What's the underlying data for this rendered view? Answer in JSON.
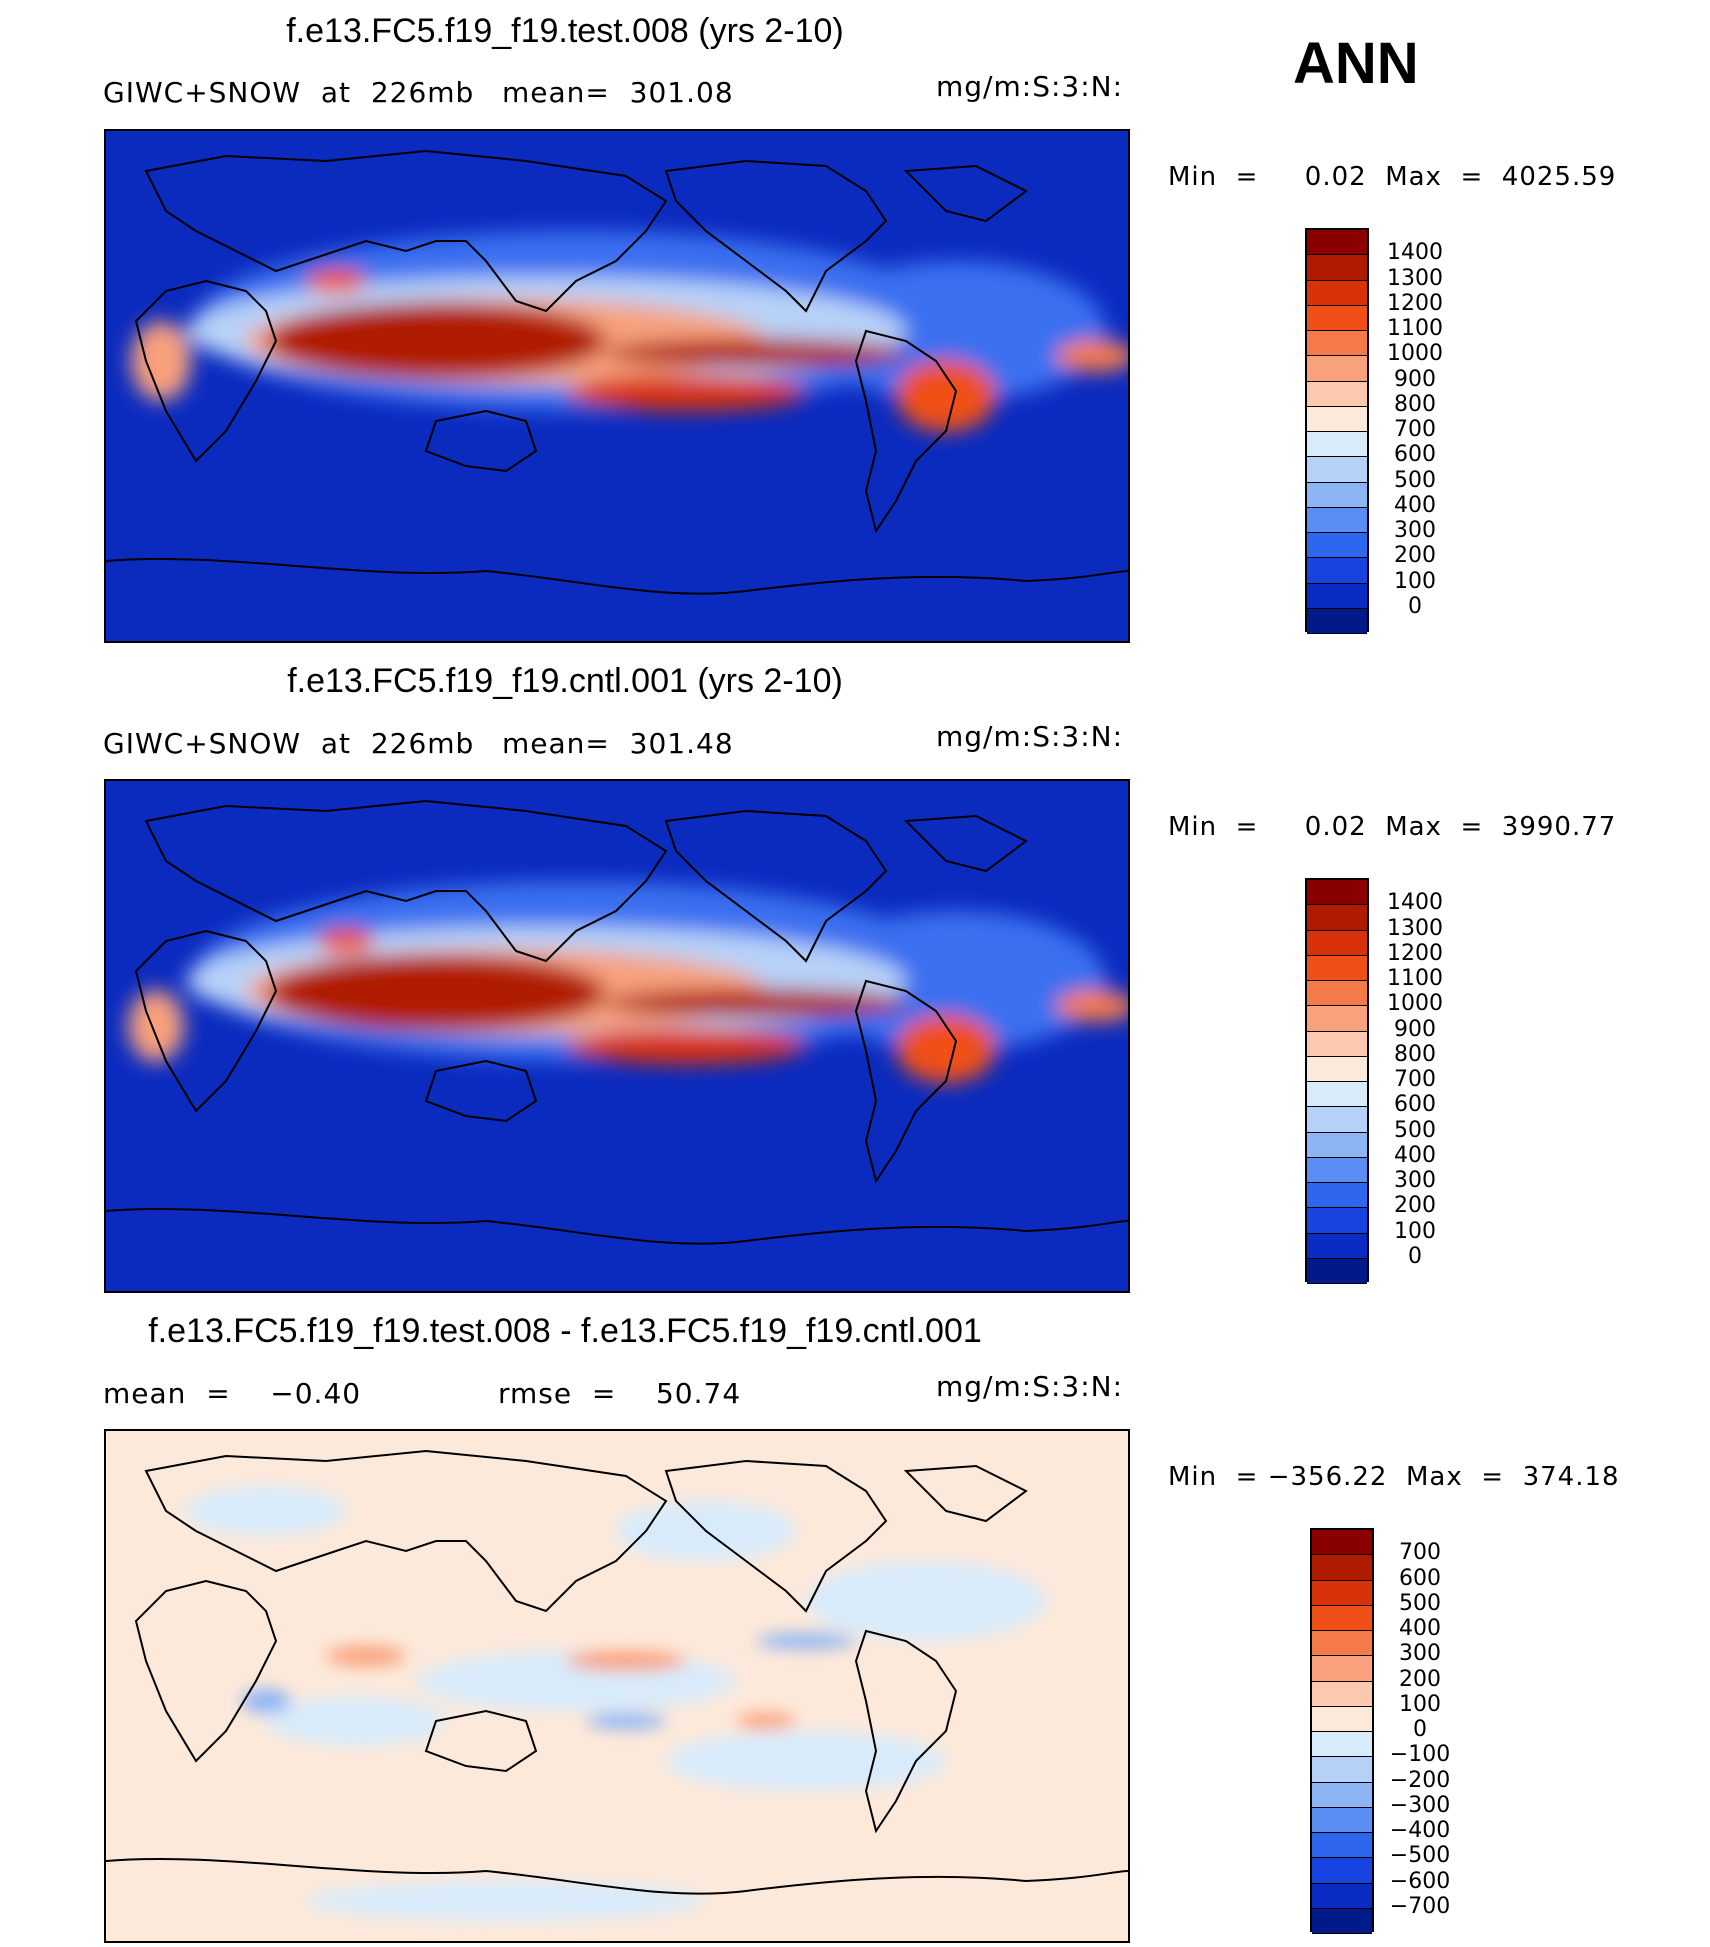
{
  "season": "ANN",
  "panels": [
    {
      "title": "f.e13.FC5.f19_f19.test.008 (yrs 2-10)",
      "left_label": "GIWC+SNOW  at  226mb",
      "stat_label": "mean=  301.08",
      "units": "mg/m:S:3:N:",
      "minmax": "Min  =     0.02  Max  =  4025.59",
      "colorbar": {
        "labels": [
          "1400",
          "1300",
          "1200",
          "1100",
          "1000",
          "900",
          "800",
          "700",
          "600",
          "500",
          "400",
          "300",
          "200",
          "100",
          "0"
        ],
        "colors": [
          "#8a0000",
          "#b01a00",
          "#d9310a",
          "#f04f18",
          "#f57a4a",
          "#f9a07c",
          "#fcc9ae",
          "#fde9da",
          "#d8ebfb",
          "#b5d1f8",
          "#8db4f5",
          "#5b8ef2",
          "#2f66ee",
          "#1744e0",
          "#0a2cc2",
          "#001a8a"
        ]
      }
    },
    {
      "title": "f.e13.FC5.f19_f19.cntl.001 (yrs 2-10)",
      "left_label": "GIWC+SNOW  at  226mb",
      "stat_label": "mean=  301.48",
      "units": "mg/m:S:3:N:",
      "minmax": "Min  =     0.02  Max  =  3990.77",
      "colorbar": {
        "labels": [
          "1400",
          "1300",
          "1200",
          "1100",
          "1000",
          "900",
          "800",
          "700",
          "600",
          "500",
          "400",
          "300",
          "200",
          "100",
          "0"
        ],
        "colors": [
          "#8a0000",
          "#b01a00",
          "#d9310a",
          "#f04f18",
          "#f57a4a",
          "#f9a07c",
          "#fcc9ae",
          "#fde9da",
          "#d8ebfb",
          "#b5d1f8",
          "#8db4f5",
          "#5b8ef2",
          "#2f66ee",
          "#1744e0",
          "#0a2cc2",
          "#001a8a"
        ]
      }
    },
    {
      "title": "f.e13.FC5.f19_f19.test.008 - f.e13.FC5.f19_f19.cntl.001",
      "left_label": "mean  =    −0.40",
      "stat_label": "rmse  =    50.74",
      "units": "mg/m:S:3:N:",
      "minmax": "Min  = −356.22  Max  =  374.18",
      "colorbar": {
        "labels": [
          "700",
          "600",
          "500",
          "400",
          "300",
          "200",
          "100",
          "0",
          "−100",
          "−200",
          "−300",
          "−400",
          "−500",
          "−600",
          "−700"
        ],
        "colors": [
          "#8a0000",
          "#b01a00",
          "#d9310a",
          "#f04f18",
          "#f57a4a",
          "#f9a07c",
          "#fcc9ae",
          "#fde9da",
          "#d8ebfb",
          "#b5d1f8",
          "#8db4f5",
          "#5b8ef2",
          "#2f66ee",
          "#1744e0",
          "#0a2cc2",
          "#001a8a"
        ]
      }
    }
  ],
  "map_colors": {
    "background_abs": "#0b2bbf",
    "background_diff": "#fde9da",
    "coast": "#000000"
  }
}
